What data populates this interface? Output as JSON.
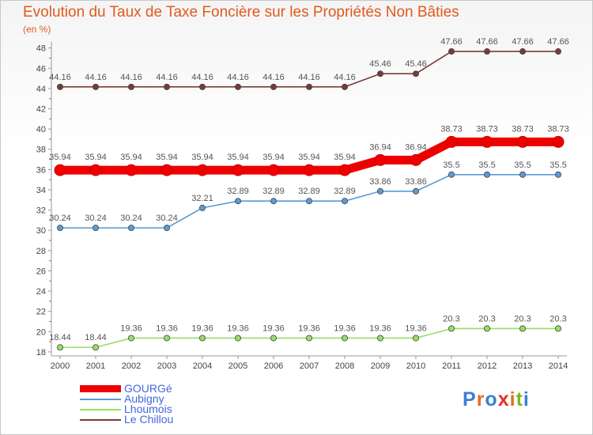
{
  "header": {
    "title": "Evolution du Taux de Taxe Foncière sur les Propriétés Non Bâties",
    "subtitle": "(en %)"
  },
  "logo": {
    "text": "Proxiti",
    "letter_colors": [
      "#3a7fd5",
      "#e07020",
      "#3a7fd5",
      "#e03030",
      "#e07020",
      "#7ab829",
      "#3a7fd5"
    ]
  },
  "chart_data": {
    "type": "line",
    "x": [
      "2000",
      "2001",
      "2002",
      "2003",
      "2004",
      "2005",
      "2006",
      "2007",
      "2008",
      "2009",
      "2010",
      "2011",
      "2012",
      "2013",
      "2014"
    ],
    "ylim": [
      17.6,
      48.6
    ],
    "yticks": [
      18,
      20,
      22,
      24,
      26,
      28,
      30,
      32,
      34,
      36,
      38,
      40,
      42,
      44,
      46,
      48
    ],
    "grid": false,
    "legend_position": "bottom-left",
    "series": [
      {
        "name": "GOURGé",
        "color": "#ee0000",
        "values": [
          35.94,
          35.94,
          35.94,
          35.94,
          35.94,
          35.94,
          35.94,
          35.94,
          35.94,
          36.94,
          36.94,
          38.73,
          38.73,
          38.73,
          38.73
        ],
        "labels": [
          "35.94",
          "35.94",
          "35.94",
          "35.94",
          "35.94",
          "35.94",
          "35.94",
          "35.94",
          "35.94",
          "36.94",
          "36.94",
          "38.73",
          "38.73",
          "38.73",
          "38.73"
        ]
      },
      {
        "name": "Aubigny",
        "color": "#5b9bd5",
        "values": [
          30.24,
          30.24,
          30.24,
          30.24,
          32.21,
          32.89,
          32.89,
          32.89,
          32.89,
          33.86,
          33.86,
          35.5,
          35.5,
          35.5,
          35.5
        ],
        "labels": [
          "30.24",
          "30.24",
          "30.24",
          "30.24",
          "32.21",
          "32.89",
          "32.89",
          "32.89",
          "32.89",
          "33.86",
          "33.86",
          "35.5",
          "35.5",
          "35.5",
          "35.5"
        ]
      },
      {
        "name": "Lhoumois",
        "color": "#99dd66",
        "values": [
          18.44,
          18.44,
          19.36,
          19.36,
          19.36,
          19.36,
          19.36,
          19.36,
          19.36,
          19.36,
          19.36,
          20.3,
          20.3,
          20.3,
          20.3
        ],
        "labels": [
          "18.44",
          "18.44",
          "19.36",
          "19.36",
          "19.36",
          "19.36",
          "19.36",
          "19.36",
          "19.36",
          "19.36",
          "19.36",
          "20.3",
          "20.3",
          "20.3",
          "20.3"
        ]
      },
      {
        "name": "Le Chillou",
        "color": "#7a3a3a",
        "values": [
          44.16,
          44.16,
          44.16,
          44.16,
          44.16,
          44.16,
          44.16,
          44.16,
          44.16,
          45.46,
          45.46,
          47.66,
          47.66,
          47.66,
          47.66
        ],
        "labels": [
          "44.16",
          "44.16",
          "44.16",
          "44.16",
          "44.16",
          "44.16",
          "44.16",
          "44.16",
          "44.16",
          "45.46",
          "45.46",
          "47.66",
          "47.66",
          "47.66",
          "47.66"
        ]
      }
    ]
  }
}
